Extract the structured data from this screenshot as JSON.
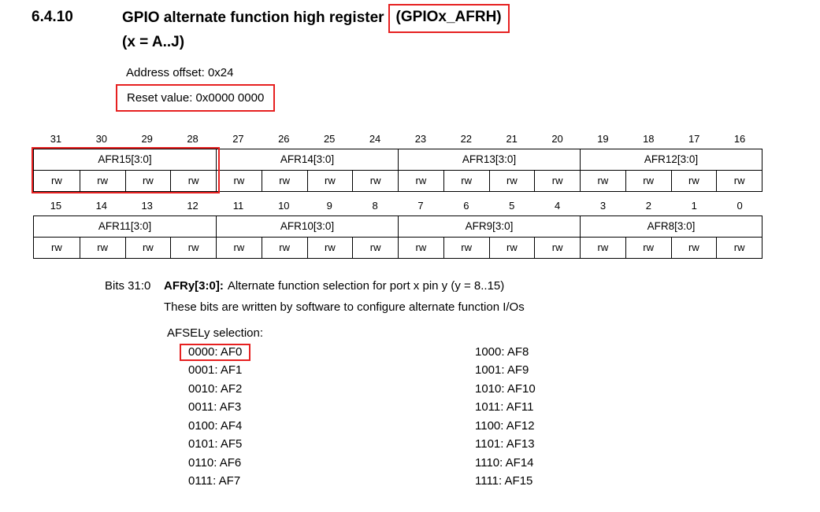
{
  "colors": {
    "accent_red": "#e62020",
    "text": "#000000",
    "background": "#ffffff"
  },
  "heading": {
    "section_number": "6.4.10",
    "title_main": "GPIO alternate function high register",
    "title_highlighted": "(GPIOx_AFRH)",
    "title_line2": "(x = A..J)"
  },
  "register_info": {
    "address_offset": "Address offset: 0x24",
    "reset_value": "Reset value: 0x0000 0000"
  },
  "register_tables": [
    {
      "bits": [
        "31",
        "30",
        "29",
        "28",
        "27",
        "26",
        "25",
        "24",
        "23",
        "22",
        "21",
        "20",
        "19",
        "18",
        "17",
        "16"
      ],
      "fields": [
        "AFR15[3:0]",
        "AFR14[3:0]",
        "AFR13[3:0]",
        "AFR12[3:0]"
      ],
      "access": [
        "rw",
        "rw",
        "rw",
        "rw",
        "rw",
        "rw",
        "rw",
        "rw",
        "rw",
        "rw",
        "rw",
        "rw",
        "rw",
        "rw",
        "rw",
        "rw"
      ],
      "highlighted_field": "AFR15[3:0]"
    },
    {
      "bits": [
        "15",
        "14",
        "13",
        "12",
        "11",
        "10",
        "9",
        "8",
        "7",
        "6",
        "5",
        "4",
        "3",
        "2",
        "1",
        "0"
      ],
      "fields": [
        "AFR11[3:0]",
        "AFR10[3:0]",
        "AFR9[3:0]",
        "AFR8[3:0]"
      ],
      "access": [
        "rw",
        "rw",
        "rw",
        "rw",
        "rw",
        "rw",
        "rw",
        "rw",
        "rw",
        "rw",
        "rw",
        "rw",
        "rw",
        "rw",
        "rw",
        "rw"
      ]
    }
  ],
  "description": {
    "bits_label": "Bits 31:0",
    "field_bold": "AFRy[3:0]:",
    "line1_text": "Alternate function selection for port x pin y (y = 8..15)",
    "line2_text": "These bits are written by software to configure alternate function I/Os",
    "selection_label": "AFSELy selection:"
  },
  "af_selection": {
    "highlighted_item": "0000: AF0",
    "left": [
      "0000: AF0",
      "0001: AF1",
      "0010: AF2",
      "0011: AF3",
      "0100: AF4",
      "0101: AF5",
      "0110: AF6",
      "0111: AF7"
    ],
    "right": [
      "1000: AF8",
      "1001: AF9",
      "1010: AF10",
      "1011: AF11",
      "1100: AF12",
      "1101: AF13",
      "1110: AF14",
      "1111: AF15"
    ]
  }
}
